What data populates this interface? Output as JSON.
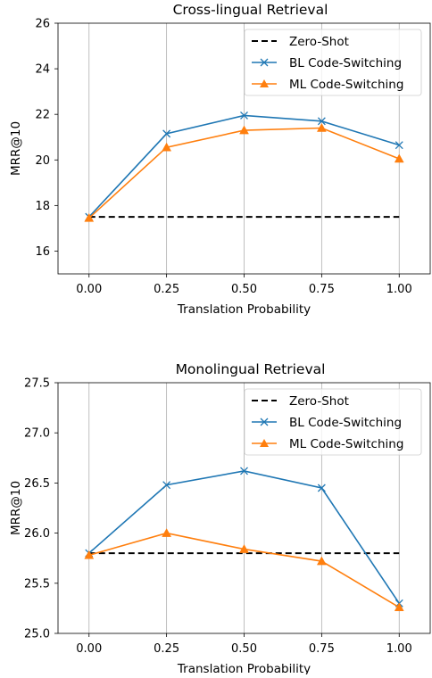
{
  "chart_data": [
    {
      "type": "line",
      "title": "Cross-lingual Retrieval",
      "xlabel": "Translation Probability",
      "ylabel": "MRR@10",
      "x": [
        0.0,
        0.25,
        0.5,
        0.75,
        1.0
      ],
      "x_ticks": [
        "0.00",
        "0.25",
        "0.50",
        "0.75",
        "1.00"
      ],
      "ylim": [
        15,
        26
      ],
      "y_ticks": [
        "16",
        "18",
        "20",
        "22",
        "24",
        "26"
      ],
      "grid": "vertical",
      "legend_position": "top-right",
      "series": [
        {
          "name": "Zero-Shot",
          "style": "dashed",
          "color": "#000000",
          "marker": "none",
          "values": [
            17.5,
            17.5,
            17.5,
            17.5,
            17.5
          ]
        },
        {
          "name": "BL Code-Switching",
          "style": "solid",
          "color": "#1f77b4",
          "marker": "x",
          "values": [
            17.5,
            21.15,
            21.95,
            21.7,
            20.65
          ]
        },
        {
          "name": "ML Code-Switching",
          "style": "solid",
          "color": "#ff7f0e",
          "marker": "triangle",
          "values": [
            17.45,
            20.55,
            21.3,
            21.4,
            20.05
          ]
        }
      ]
    },
    {
      "type": "line",
      "title": "Monolingual Retrieval",
      "xlabel": "Translation Probability",
      "ylabel": "MRR@10",
      "x": [
        0.0,
        0.25,
        0.5,
        0.75,
        1.0
      ],
      "x_ticks": [
        "0.00",
        "0.25",
        "0.50",
        "0.75",
        "1.00"
      ],
      "ylim": [
        25.0,
        27.5
      ],
      "y_ticks": [
        "25.0",
        "25.5",
        "26.0",
        "26.5",
        "27.0",
        "27.5"
      ],
      "grid": "vertical",
      "legend_position": "top-right",
      "series": [
        {
          "name": "Zero-Shot",
          "style": "dashed",
          "color": "#000000",
          "marker": "none",
          "values": [
            25.8,
            25.8,
            25.8,
            25.8,
            25.8
          ]
        },
        {
          "name": "BL Code-Switching",
          "style": "solid",
          "color": "#1f77b4",
          "marker": "x",
          "values": [
            25.8,
            26.48,
            26.62,
            26.45,
            25.3
          ]
        },
        {
          "name": "ML Code-Switching",
          "style": "solid",
          "color": "#ff7f0e",
          "marker": "triangle",
          "values": [
            25.78,
            26.0,
            25.84,
            25.72,
            25.26
          ]
        }
      ]
    }
  ]
}
